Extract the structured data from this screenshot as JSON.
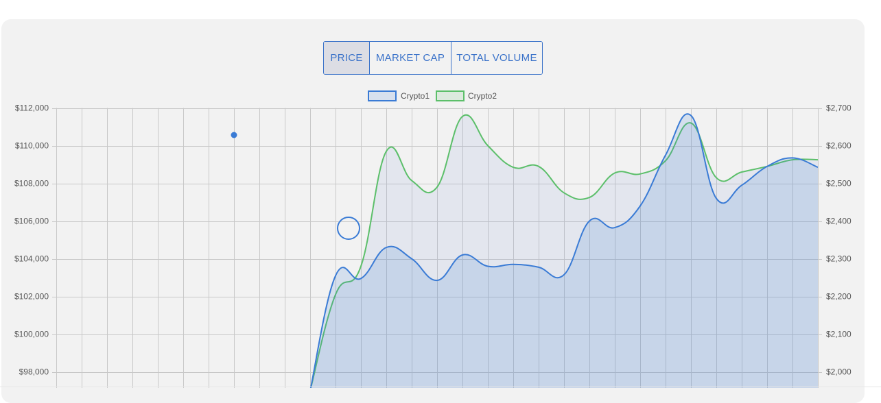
{
  "tabs": [
    {
      "label": "PRICE",
      "active": true
    },
    {
      "label": "MARKET CAP",
      "active": false
    },
    {
      "label": "TOTAL VOLUME",
      "active": false
    }
  ],
  "colors": {
    "crypto1": "#3a7bd5",
    "crypto2": "#5cbf6a",
    "grid": "#c8c8c8",
    "panel": "#f2f2f2",
    "accent": "#3a72c9"
  },
  "chart_data": {
    "type": "line",
    "legend": {
      "placement": "top-center",
      "entries": [
        "Crypto1",
        "Crypto2"
      ]
    },
    "grid": true,
    "y_left": {
      "ticks": [
        "$112,000",
        "$110,000",
        "$108,000",
        "$106,000",
        "$104,000",
        "$102,000",
        "$100,000",
        "$98,000"
      ],
      "tick_values": [
        112000,
        110000,
        108000,
        106000,
        104000,
        102000,
        100000,
        98000
      ],
      "range": [
        97500,
        112000
      ]
    },
    "y_right": {
      "ticks": [
        "$2,700",
        "$2,600",
        "$2,500",
        "$2,400",
        "$2,300",
        "$2,200",
        "$2,100",
        "$2,000"
      ],
      "tick_values": [
        2700,
        2600,
        2500,
        2400,
        2300,
        2200,
        2100,
        2000
      ],
      "range": [
        1975,
        2700
      ]
    },
    "x_count": 31,
    "series": [
      {
        "name": "Crypto1",
        "axis": "left",
        "values": [
          null,
          null,
          null,
          null,
          null,
          null,
          null,
          null,
          null,
          null,
          97000,
          103100,
          102950,
          104600,
          104000,
          102850,
          104200,
          103600,
          103700,
          103550,
          103150,
          106000,
          105650,
          106800,
          109500,
          111600,
          107200,
          107900,
          108900,
          109350,
          108850
        ]
      },
      {
        "name": "Crypto2",
        "axis": "left",
        "values": [
          null,
          null,
          null,
          null,
          null,
          null,
          null,
          null,
          null,
          null,
          97000,
          102100,
          103600,
          109700,
          108150,
          107800,
          111550,
          110000,
          108850,
          108900,
          107500,
          107250,
          108550,
          108500,
          109200,
          111200,
          108300,
          108600,
          108900,
          109250,
          109250
        ]
      }
    ]
  }
}
